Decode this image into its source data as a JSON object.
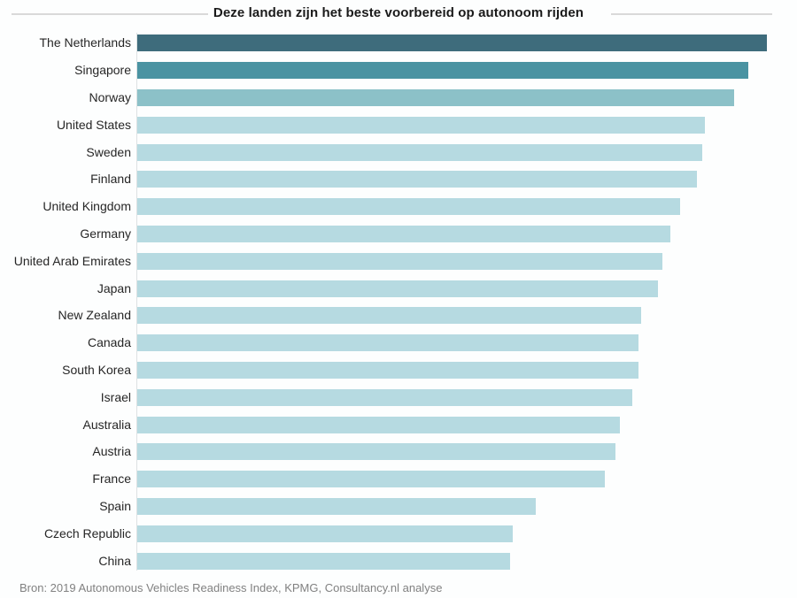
{
  "chart_data": {
    "type": "bar",
    "orientation": "horizontal",
    "title": "Deze landen zijn het beste voorbereid op autonoom rijden",
    "source": "Bron: 2019 Autonomous Vehicles Readiness Index, KPMG, Consultancy.nl analyse",
    "categories": [
      "The Netherlands",
      "Singapore",
      "Norway",
      "United States",
      "Sweden",
      "Finland",
      "United Kingdom",
      "Germany",
      "United Arab Emirates",
      "Japan",
      "New Zealand",
      "Canada",
      "South Korea",
      "Israel",
      "Australia",
      "Austria",
      "France",
      "Spain",
      "Czech Republic",
      "China"
    ],
    "values": [
      25.05,
      24.32,
      23.75,
      22.58,
      22.48,
      22.28,
      21.58,
      21.2,
      20.89,
      20.71,
      20.04,
      19.94,
      19.94,
      19.69,
      19.19,
      19.04,
      18.62,
      15.87,
      14.94,
      14.84
    ],
    "bar_colors": [
      "#3e6c7c",
      "#4a93a2",
      "#8cc1c8",
      "#b6dae1",
      "#b6dae1",
      "#b6dae1",
      "#b6dae1",
      "#b6dae1",
      "#b6dae1",
      "#b6dae1",
      "#b6dae1",
      "#b6dae1",
      "#b6dae1",
      "#b6dae1",
      "#b6dae1",
      "#b6dae1",
      "#b6dae1",
      "#b6dae1",
      "#b6dae1",
      "#b6dae1"
    ],
    "xlim": [
      0,
      25.05
    ],
    "value_axis_labels_visible": false,
    "grid": false,
    "legend": false,
    "colors": {
      "highlight_rank_1": "#3e6c7c",
      "highlight_rank_2": "#4a93a2",
      "highlight_rank_3": "#8cc1c8",
      "default_bar": "#b6dae1",
      "axis_line": "#dde2e3",
      "title_rule": "#d9d9d9",
      "label_text": "#262626",
      "source_text": "#818181"
    }
  }
}
